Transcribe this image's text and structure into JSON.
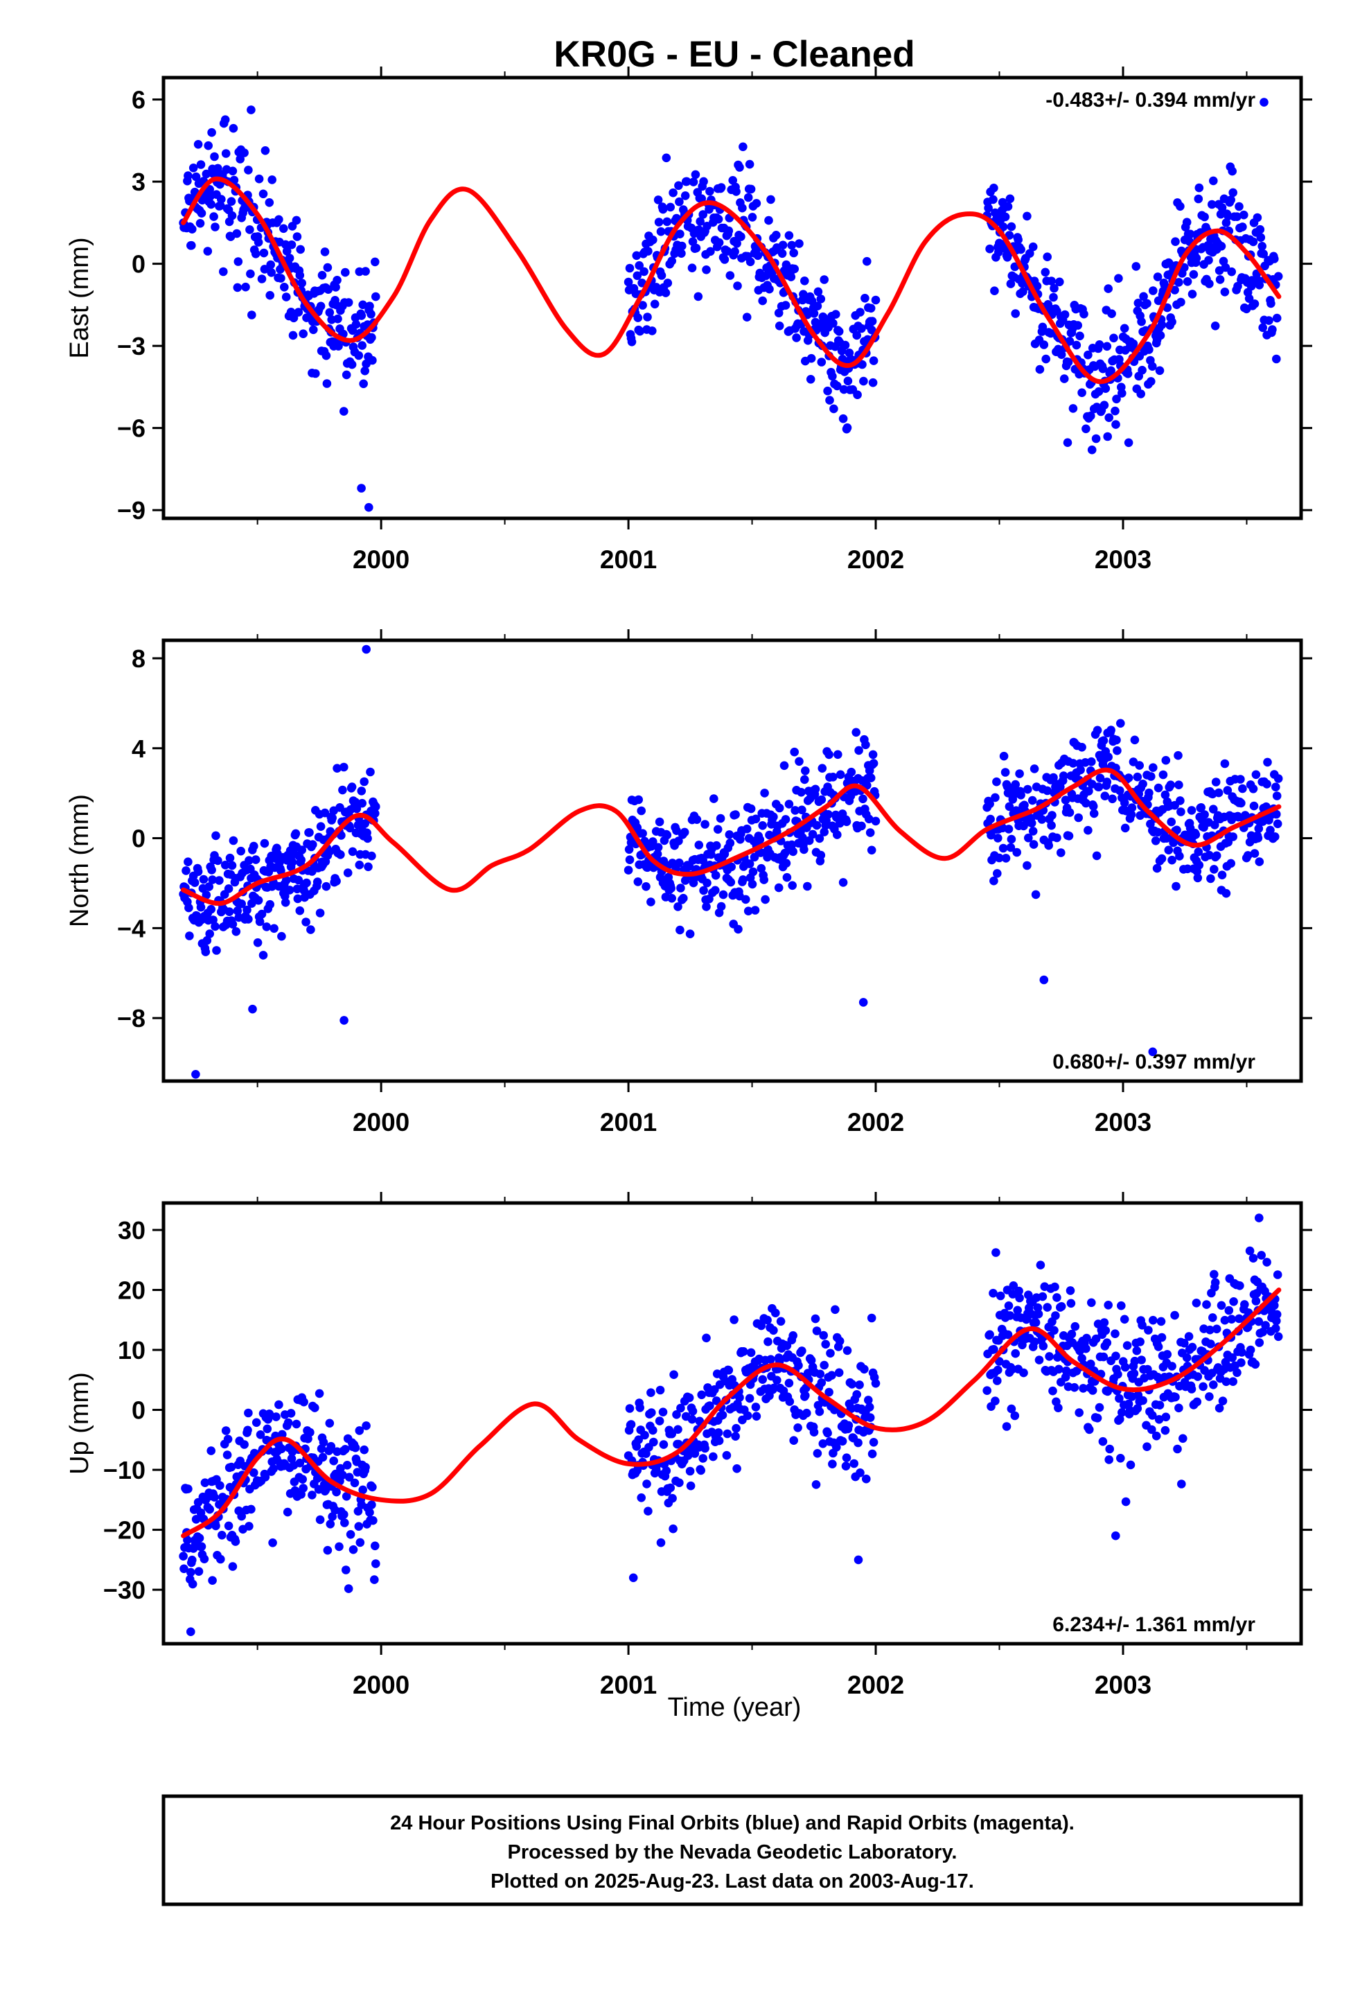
{
  "title": "KR0G  - EU - Cleaned",
  "colors": {
    "points": "#0000ff",
    "model": "#ff0000",
    "axis": "#000000",
    "background": "#ffffff"
  },
  "legend_note": "24 Hour Positions Using Final Orbits (blue) and Rapid Orbits (magenta).",
  "footer": {
    "line1": "24 Hour Positions Using Final Orbits (blue) and Rapid Orbits (magenta).",
    "line2": "Processed by the Nevada Geodetic Laboratory.",
    "line3": "Plotted on 2025-Aug-23. Last data on 2003-Aug-17."
  },
  "chart_data": [
    {
      "type": "scatter",
      "component": "east",
      "ylabel": "East (mm)",
      "xlabel": "",
      "rate_label": "-0.483+/- 0.394 mm/yr",
      "rate_position": "top-right",
      "xlim": [
        1999.12,
        2003.72
      ],
      "ylim": [
        -9.3,
        6.8
      ],
      "xticks": [
        2000,
        2001,
        2002,
        2003
      ],
      "yticks": [
        6,
        3,
        0,
        -3,
        -6,
        -9
      ],
      "ytick_labels": [
        "6",
        "3",
        "0",
        "−3",
        "−6",
        "−9"
      ],
      "observation_spans": [
        [
          1999.2,
          1999.98
        ],
        [
          2001.0,
          2002.0
        ],
        [
          2002.45,
          2003.63
        ]
      ],
      "model_curve": {
        "name": "model",
        "x": [
          1999.2,
          1999.33,
          1999.5,
          1999.7,
          1999.88,
          2000.05,
          2000.2,
          2000.35,
          2000.55,
          2000.75,
          2000.9,
          2001.05,
          2001.2,
          2001.35,
          2001.55,
          2001.75,
          2001.9,
          2002.05,
          2002.2,
          2002.35,
          2002.5,
          2002.7,
          2002.9,
          2003.1,
          2003.25,
          2003.38,
          2003.5,
          2003.63
        ],
        "y": [
          1.5,
          3.1,
          1.8,
          -1.5,
          -2.8,
          -1.2,
          1.6,
          2.7,
          0.5,
          -2.4,
          -3.3,
          -1.2,
          1.4,
          2.2,
          0.5,
          -2.6,
          -3.7,
          -1.8,
          0.8,
          1.8,
          1.2,
          -2.0,
          -4.3,
          -2.6,
          0.3,
          1.2,
          0.4,
          -1.2
        ]
      },
      "scatter_spread": 1.1,
      "outliers": {
        "x": [
          1999.92,
          1999.95,
          2003.57
        ],
        "y": [
          -8.2,
          -8.9,
          5.9
        ]
      }
    },
    {
      "type": "scatter",
      "component": "north",
      "ylabel": "North (mm)",
      "xlabel": "",
      "rate_label": "0.680+/- 0.397 mm/yr",
      "rate_position": "bottom-right",
      "xlim": [
        1999.12,
        2003.72
      ],
      "ylim": [
        -10.8,
        8.8
      ],
      "xticks": [
        2000,
        2001,
        2002,
        2003
      ],
      "yticks": [
        8,
        4,
        0,
        -4,
        -8
      ],
      "ytick_labels": [
        "8",
        "4",
        "0",
        "−4",
        "−8"
      ],
      "observation_spans": [
        [
          1999.2,
          1999.98
        ],
        [
          2001.0,
          2002.0
        ],
        [
          2002.45,
          2003.63
        ]
      ],
      "model_curve": {
        "name": "model",
        "x": [
          1999.2,
          1999.35,
          1999.5,
          1999.7,
          1999.9,
          2000.05,
          2000.28,
          2000.45,
          2000.6,
          2000.8,
          2000.95,
          2001.1,
          2001.25,
          2001.45,
          2001.65,
          2001.8,
          2001.93,
          2002.1,
          2002.28,
          2002.45,
          2002.65,
          2002.8,
          2002.95,
          2003.1,
          2003.28,
          2003.45,
          2003.63
        ],
        "y": [
          -2.3,
          -2.9,
          -2.0,
          -1.2,
          1.0,
          -0.2,
          -2.3,
          -1.2,
          -0.5,
          1.2,
          1.2,
          -1.0,
          -1.6,
          -0.8,
          0.3,
          1.4,
          2.3,
          0.3,
          -0.9,
          0.4,
          1.3,
          2.3,
          3.0,
          1.2,
          -0.3,
          0.5,
          1.4
        ]
      },
      "scatter_spread": 1.2,
      "outliers": {
        "x": [
          1999.25,
          1999.48,
          1999.85,
          1999.94,
          2001.95,
          2002.68,
          2003.12
        ],
        "y": [
          -10.5,
          -7.6,
          -8.1,
          8.4,
          -7.3,
          -6.3,
          -9.5
        ]
      }
    },
    {
      "type": "scatter",
      "component": "up",
      "ylabel": "Up (mm)",
      "xlabel": "Time (year)",
      "rate_label": "6.234+/- 1.361 mm/yr",
      "rate_position": "bottom-right",
      "xlim": [
        1999.12,
        2003.72
      ],
      "ylim": [
        -39,
        34.5
      ],
      "xticks": [
        2000,
        2001,
        2002,
        2003
      ],
      "yticks": [
        30,
        20,
        10,
        0,
        -10,
        -20,
        -30
      ],
      "ytick_labels": [
        "30",
        "20",
        "10",
        "0",
        "−10",
        "−20",
        "−30"
      ],
      "observation_spans": [
        [
          1999.2,
          1999.98
        ],
        [
          2001.0,
          2002.0
        ],
        [
          2002.45,
          2003.63
        ]
      ],
      "model_curve": {
        "name": "model",
        "x": [
          1999.2,
          1999.35,
          1999.5,
          1999.62,
          1999.8,
          2000.0,
          2000.2,
          2000.4,
          2000.62,
          2000.8,
          2001.0,
          2001.2,
          2001.4,
          2001.6,
          2001.8,
          2002.0,
          2002.2,
          2002.4,
          2002.62,
          2002.8,
          2003.0,
          2003.2,
          2003.4,
          2003.63
        ],
        "y": [
          -21,
          -17,
          -8,
          -5,
          -12,
          -15,
          -14,
          -6,
          1,
          -5,
          -9,
          -7,
          2,
          7.5,
          2,
          -3,
          -2,
          5,
          13.5,
          8,
          3.5,
          5,
          11,
          20
        ]
      },
      "scatter_spread": 5.5,
      "outliers": {
        "x": [
          1999.23,
          2001.02,
          2001.93,
          2002.97,
          2003.55
        ],
        "y": [
          -37,
          -28,
          -25,
          -21,
          32
        ]
      }
    }
  ]
}
